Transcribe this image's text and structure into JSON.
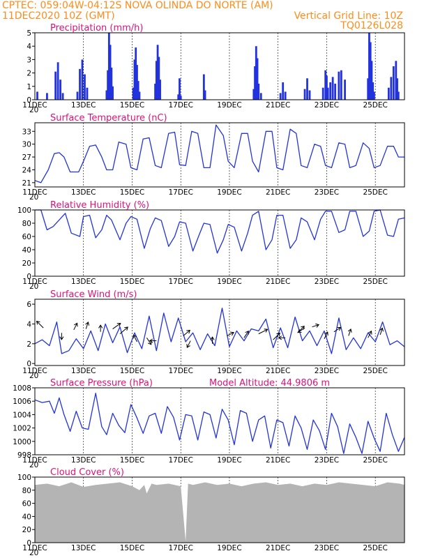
{
  "header": {
    "left_line1": "CPTEC:    059:04W-04:12S   NOVA OLINDA DO NORTE (AM)",
    "left_line2": "11DEC2020 10Z (GMT)",
    "right_line1": "Vertical Grid Line: 10Z",
    "right_line2": "TQ0126L028"
  },
  "colors": {
    "header": "#ff8c1a",
    "title": "#e0107a",
    "series": "#2233dd",
    "cloud": "#b4b4b4"
  },
  "x_axis": {
    "labels": [
      "11DEC",
      "13DEC",
      "15DEC",
      "17DEC",
      "19DEC",
      "21DEC",
      "23DEC",
      "25DEC"
    ],
    "day_min": 0,
    "day_max": 15.2,
    "stray_label": "20"
  },
  "chart_data": [
    {
      "type": "bar",
      "name": "precipitation",
      "title": "Precipitation (mm/h)",
      "ylim": [
        0,
        5
      ],
      "yticks": [
        0,
        1,
        2,
        3,
        4,
        5
      ],
      "bars": [
        [
          0.1,
          0.6
        ],
        [
          0.5,
          0.5
        ],
        [
          0.85,
          2.1
        ],
        [
          0.95,
          2.8
        ],
        [
          1.05,
          1.5
        ],
        [
          1.15,
          0.5
        ],
        [
          1.75,
          0.6
        ],
        [
          1.85,
          2.3
        ],
        [
          1.95,
          3.0
        ],
        [
          2.05,
          1.9
        ],
        [
          2.15,
          0.9
        ],
        [
          2.95,
          0.7
        ],
        [
          3.0,
          2.2
        ],
        [
          3.05,
          5.0
        ],
        [
          3.1,
          4.1
        ],
        [
          3.15,
          2.4
        ],
        [
          3.2,
          1.0
        ],
        [
          4.05,
          0.9
        ],
        [
          4.1,
          3.0
        ],
        [
          4.15,
          3.9
        ],
        [
          4.2,
          2.6
        ],
        [
          4.25,
          1.4
        ],
        [
          4.3,
          0.6
        ],
        [
          4.95,
          1.2
        ],
        [
          5.0,
          2.9
        ],
        [
          5.05,
          4.1
        ],
        [
          5.1,
          3.2
        ],
        [
          5.15,
          1.5
        ],
        [
          5.9,
          0.4
        ],
        [
          5.95,
          1.6
        ],
        [
          6.0,
          0.3
        ],
        [
          6.95,
          1.9
        ],
        [
          7.0,
          0.7
        ],
        [
          9.0,
          0.8
        ],
        [
          9.05,
          2.5
        ],
        [
          9.1,
          4.0
        ],
        [
          9.15,
          3.1
        ],
        [
          9.2,
          1.2
        ],
        [
          9.3,
          0.5
        ],
        [
          10.1,
          0.5
        ],
        [
          10.2,
          1.3
        ],
        [
          10.3,
          0.6
        ],
        [
          11.1,
          0.8
        ],
        [
          11.2,
          1.6
        ],
        [
          11.3,
          0.7
        ],
        [
          11.85,
          0.9
        ],
        [
          11.95,
          2.2
        ],
        [
          12.0,
          1.8
        ],
        [
          12.05,
          0.9
        ],
        [
          12.15,
          1.3
        ],
        [
          12.25,
          1.7
        ],
        [
          12.35,
          1.2
        ],
        [
          12.5,
          2.1
        ],
        [
          12.6,
          2.2
        ],
        [
          12.75,
          1.5
        ],
        [
          13.7,
          1.6
        ],
        [
          13.75,
          5.0
        ],
        [
          13.8,
          4.3
        ],
        [
          13.85,
          2.9
        ],
        [
          13.9,
          1.3
        ],
        [
          13.95,
          0.6
        ],
        [
          14.55,
          0.9
        ],
        [
          14.65,
          1.7
        ],
        [
          14.75,
          2.5
        ],
        [
          14.85,
          2.9
        ],
        [
          14.9,
          1.6
        ],
        [
          14.95,
          0.6
        ]
      ]
    },
    {
      "type": "line",
      "name": "surface_temperature",
      "title": "Surface Temperature (nC)",
      "ylim": [
        20,
        35
      ],
      "yticks": [
        21,
        24,
        27,
        30,
        33
      ],
      "x": [
        0,
        0.25,
        0.55,
        0.8,
        1.0,
        1.2,
        1.45,
        1.8,
        2.0,
        2.25,
        2.5,
        2.75,
        2.95,
        3.2,
        3.45,
        3.75,
        3.95,
        4.2,
        4.45,
        4.7,
        4.95,
        5.2,
        5.5,
        5.75,
        5.95,
        6.2,
        6.45,
        6.7,
        6.95,
        7.2,
        7.45,
        7.75,
        7.95,
        8.2,
        8.5,
        8.75,
        8.95,
        9.2,
        9.5,
        9.75,
        9.95,
        10.2,
        10.5,
        10.75,
        10.95,
        11.2,
        11.5,
        11.75,
        11.95,
        12.2,
        12.5,
        12.75,
        12.95,
        13.2,
        13.5,
        13.75,
        13.95,
        14.2,
        14.5,
        14.75,
        14.95,
        15.2
      ],
      "y": [
        21.5,
        21,
        24,
        27.8,
        28,
        27,
        23.5,
        23.5,
        26,
        29.5,
        29.8,
        27,
        24,
        24,
        30.5,
        30,
        24.5,
        24,
        31.2,
        31.5,
        25,
        24.5,
        32.5,
        32.8,
        25.2,
        25,
        33,
        32.5,
        24.5,
        24.5,
        34.5,
        32,
        26,
        24.5,
        32.5,
        32.5,
        26,
        23.5,
        33,
        33,
        24.5,
        24,
        33.5,
        32.5,
        25,
        24.5,
        30,
        29.5,
        25,
        24.5,
        30.3,
        30,
        24.5,
        25,
        30.3,
        29,
        24.5,
        25,
        29.5,
        29.5,
        27,
        27
      ]
    },
    {
      "type": "line",
      "name": "relative_humidity",
      "title": "Relative Humidity (%)",
      "ylim": [
        0,
        100
      ],
      "yticks": [
        0,
        20,
        40,
        60,
        80,
        100
      ],
      "x": [
        0,
        0.25,
        0.5,
        0.75,
        1.0,
        1.25,
        1.5,
        1.85,
        2.0,
        2.25,
        2.5,
        2.75,
        2.95,
        3.15,
        3.5,
        3.75,
        3.95,
        4.2,
        4.5,
        4.75,
        4.95,
        5.2,
        5.5,
        5.75,
        5.95,
        6.2,
        6.5,
        6.75,
        6.95,
        7.2,
        7.5,
        7.75,
        7.95,
        8.2,
        8.5,
        8.75,
        8.95,
        9.2,
        9.5,
        9.75,
        9.95,
        10.2,
        10.5,
        10.75,
        10.95,
        11.2,
        11.5,
        11.75,
        11.95,
        12.2,
        12.5,
        12.75,
        12.95,
        13.2,
        13.5,
        13.75,
        13.95,
        14.2,
        14.5,
        14.75,
        14.95,
        15.2
      ],
      "y": [
        100,
        100,
        70,
        75,
        85,
        95,
        65,
        60,
        90,
        92,
        58,
        70,
        92,
        85,
        55,
        80,
        90,
        86,
        42,
        72,
        88,
        84,
        45,
        60,
        82,
        80,
        38,
        62,
        80,
        78,
        35,
        55,
        78,
        74,
        38,
        65,
        92,
        98,
        40,
        55,
        92,
        92,
        42,
        55,
        88,
        82,
        55,
        86,
        98,
        98,
        66,
        70,
        98,
        98,
        60,
        68,
        98,
        100,
        62,
        60,
        86,
        88
      ]
    },
    {
      "type": "line",
      "name": "surface_wind",
      "title": "Surface Wind (m/s)",
      "ylim": [
        -0.2,
        6.5
      ],
      "yticks": [
        0,
        2,
        4,
        6
      ],
      "x": [
        0,
        0.3,
        0.6,
        0.9,
        1.1,
        1.4,
        1.7,
        2.0,
        2.3,
        2.6,
        2.9,
        3.2,
        3.5,
        3.8,
        4.1,
        4.4,
        4.7,
        5.0,
        5.3,
        5.6,
        5.9,
        6.2,
        6.5,
        6.8,
        7.1,
        7.4,
        7.7,
        8.0,
        8.3,
        8.6,
        8.9,
        9.2,
        9.5,
        9.8,
        10.1,
        10.4,
        10.7,
        11.0,
        11.3,
        11.6,
        11.9,
        12.2,
        12.5,
        12.8,
        13.1,
        13.4,
        13.7,
        14.0,
        14.3,
        14.6,
        14.9,
        15.2
      ],
      "y": [
        2.0,
        2.4,
        1.8,
        4.2,
        1.0,
        1.3,
        2.5,
        1.5,
        3.3,
        1.3,
        4.0,
        2.1,
        3.7,
        1.1,
        3.1,
        1.5,
        4.8,
        1.3,
        5.1,
        2.2,
        4.6,
        2.2,
        3.1,
        1.4,
        3.0,
        1.8,
        5.6,
        1.7,
        3.3,
        2.3,
        3.5,
        3.3,
        4.5,
        1.6,
        3.6,
        1.6,
        4.7,
        2.3,
        3.3,
        1.8,
        3.3,
        1.0,
        4.6,
        1.4,
        2.6,
        1.5,
        3.1,
        2.2,
        4.2,
        1.9,
        2.3,
        1.7
      ],
      "arrows": [
        [
          0.35,
          3.6,
          -0.6,
          0.6
        ],
        [
          1.1,
          3.1,
          0.0,
          -0.6
        ],
        [
          1.6,
          3.4,
          0.3,
          0.6
        ],
        [
          2.1,
          3.5,
          0.2,
          0.6
        ],
        [
          2.7,
          3.2,
          0.0,
          0.6
        ],
        [
          3.2,
          3.5,
          0.7,
          0.5
        ],
        [
          3.5,
          3.0,
          0.7,
          0.6
        ],
        [
          4.2,
          2.2,
          -0.3,
          0.6
        ],
        [
          4.6,
          2.6,
          0.4,
          -0.6
        ],
        [
          5.0,
          2.3,
          -0.6,
          0.0
        ],
        [
          6.1,
          2.8,
          0.6,
          0.5
        ],
        [
          6.4,
          2.3,
          -0.3,
          -0.6
        ],
        [
          7.3,
          2.0,
          0.0,
          0.6
        ],
        [
          7.9,
          2.8,
          0.6,
          0.3
        ],
        [
          8.6,
          2.6,
          0.4,
          0.6
        ],
        [
          9.2,
          3.0,
          0.8,
          0.4
        ],
        [
          9.8,
          2.4,
          0.6,
          0.6
        ],
        [
          10.3,
          2.6,
          -0.6,
          0.0
        ],
        [
          10.8,
          3.1,
          0.6,
          0.6
        ],
        [
          11.1,
          3.6,
          -0.6,
          -0.4
        ],
        [
          11.4,
          3.7,
          0.6,
          0.2
        ],
        [
          11.9,
          2.5,
          0.3,
          0.6
        ],
        [
          12.3,
          3.2,
          0.6,
          0.4
        ],
        [
          12.9,
          2.8,
          0.2,
          0.6
        ],
        [
          13.7,
          2.6,
          0.3,
          0.6
        ],
        [
          14.2,
          2.9,
          0.2,
          0.6
        ]
      ]
    },
    {
      "type": "line",
      "name": "surface_pressure",
      "title": "Surface Pressure (hPa)",
      "annotation": "Model Altitude: 44.9806 m",
      "ylim": [
        998,
        1008
      ],
      "yticks": [
        998,
        1000,
        1002,
        1004,
        1006,
        1008
      ],
      "x": [
        0,
        0.3,
        0.6,
        0.8,
        1.0,
        1.2,
        1.45,
        1.7,
        1.95,
        2.2,
        2.5,
        2.75,
        2.95,
        3.2,
        3.45,
        3.7,
        3.95,
        4.2,
        4.45,
        4.7,
        4.95,
        5.2,
        5.45,
        5.7,
        5.95,
        6.2,
        6.45,
        6.7,
        6.95,
        7.2,
        7.45,
        7.7,
        7.95,
        8.2,
        8.45,
        8.7,
        8.95,
        9.2,
        9.45,
        9.7,
        9.95,
        10.2,
        10.45,
        10.7,
        10.95,
        11.2,
        11.45,
        11.7,
        11.95,
        12.2,
        12.45,
        12.7,
        12.95,
        13.2,
        13.45,
        13.7,
        13.95,
        14.2,
        14.45,
        14.7,
        14.95,
        15.2
      ],
      "y": [
        1006.2,
        1005.8,
        1006.0,
        1004.2,
        1006.5,
        1004.0,
        1001.5,
        1004.5,
        1002.0,
        1001.8,
        1007.2,
        1002.2,
        1001.0,
        1004.2,
        1002.4,
        1001.3,
        1005.5,
        1003.5,
        1001.2,
        1003.8,
        1004.2,
        1001.2,
        1005.2,
        1003.6,
        1000.2,
        1004.0,
        1003.8,
        1000.2,
        1004.4,
        1004.0,
        1000.5,
        1004.8,
        1003.2,
        999.5,
        1004.6,
        1004.2,
        1000.0,
        1003.2,
        1003.8,
        999.0,
        1003.2,
        1002.8,
        999.3,
        1003.8,
        1002.0,
        998.8,
        1003.2,
        1001.6,
        998.8,
        1004.2,
        1002.2,
        998.2,
        1002.6,
        1000.6,
        998.2,
        1003.0,
        1000.5,
        998.5,
        1004.2,
        1001.0,
        998.5,
        1000.6
      ]
    },
    {
      "type": "area",
      "name": "cloud_cover",
      "title": "Cloud Cover (%)",
      "ylim": [
        0,
        100
      ],
      "yticks": [
        0,
        20,
        40,
        60,
        80,
        100
      ],
      "x": [
        0,
        0.5,
        1.0,
        1.5,
        2.0,
        2.5,
        3.0,
        3.5,
        4.0,
        4.3,
        4.5,
        4.6,
        4.8,
        5.0,
        5.5,
        6.0,
        6.2,
        6.3,
        6.5,
        7.0,
        7.5,
        8.0,
        8.5,
        9.0,
        9.5,
        10.0,
        10.5,
        11.0,
        11.5,
        12.0,
        12.5,
        13.0,
        13.5,
        14.0,
        14.5,
        15.0,
        15.2
      ],
      "y": [
        88,
        90,
        86,
        92,
        85,
        88,
        90,
        92,
        86,
        80,
        88,
        75,
        90,
        88,
        90,
        86,
        2,
        90,
        88,
        92,
        88,
        90,
        86,
        90,
        92,
        88,
        90,
        86,
        90,
        88,
        92,
        90,
        88,
        86,
        92,
        90,
        88
      ]
    }
  ]
}
